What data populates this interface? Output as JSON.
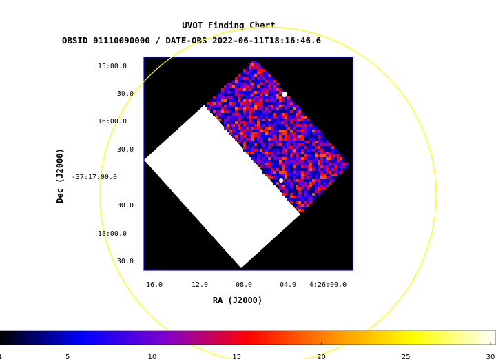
{
  "chart_data": {
    "type": "heatmap",
    "title": "UVOT Finding Chart",
    "subtitle": "OBSID 01110090000 / DATE-OBS 2022-06-11T18:16:46.6",
    "xlabel": "RA (J2000)",
    "ylabel": "Dec (J2000)",
    "x_ticks": [
      "16.0",
      "12.0",
      "08.0",
      "04.0",
      "4:26:00.0"
    ],
    "y_ticks": [
      "15:00.0",
      "30.0",
      "16:00.0",
      "30.0",
      "-37:17:00.0",
      "30.0",
      "18:00.0",
      "30.0"
    ],
    "colorbar": {
      "min": 1,
      "max": 30,
      "ticks": [
        "1",
        "5",
        "10",
        "15",
        "20",
        "25",
        "30"
      ],
      "colormap": [
        "#000000",
        "#0000ff",
        "#7f00cf",
        "#ff0000",
        "#ff8c00",
        "#ffff00",
        "#ffffff"
      ]
    },
    "overlay": {
      "shape": "circle",
      "color": "#ffff00"
    },
    "frame_color": "#0000ff",
    "background_color": "#000000",
    "exposure_fill_color": "#ffffff"
  }
}
